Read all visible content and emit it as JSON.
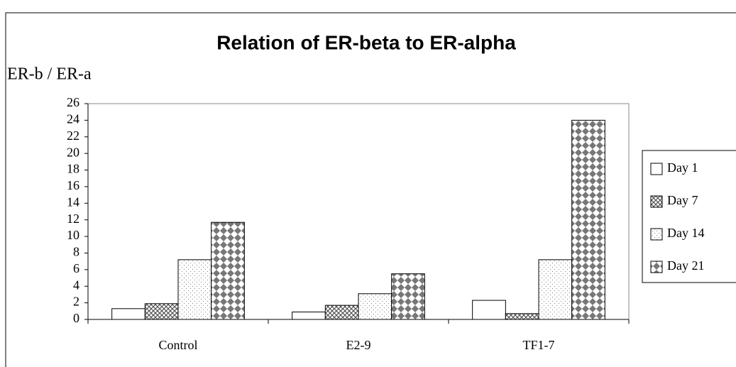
{
  "chart_data": {
    "type": "bar",
    "title": "Relation of ER-beta to ER-alpha",
    "y_label": "ER-b / ER-a",
    "categories": [
      "Control",
      "E2-9",
      "TF1-7"
    ],
    "series": [
      {
        "name": "Day 1",
        "color": "#ffffff",
        "values": [
          1.3,
          0.9,
          2.3
        ]
      },
      {
        "name": "Day 7",
        "color": "#999999",
        "values": [
          1.9,
          1.7,
          0.7
        ]
      },
      {
        "name": "Day 14",
        "color": "#ffffff",
        "values": [
          7.2,
          3.1,
          7.2
        ]
      },
      {
        "name": "Day 21",
        "color": "#888888",
        "values": [
          11.7,
          5.5,
          24
        ]
      }
    ],
    "ylim": [
      0,
      26
    ],
    "yticks": [
      0,
      2,
      4,
      6,
      8,
      10,
      12,
      14,
      16,
      18,
      20,
      22,
      24,
      26
    ],
    "legend": "right"
  }
}
